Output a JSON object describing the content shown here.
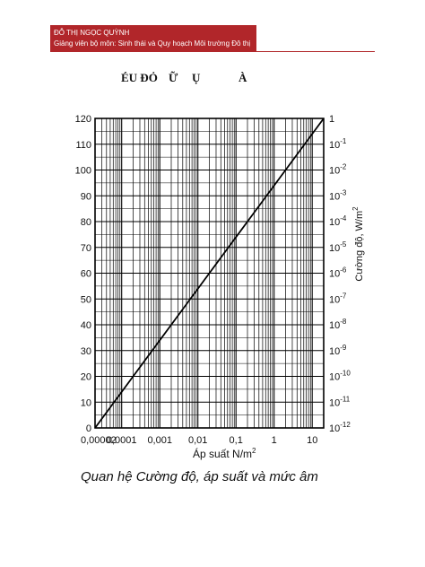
{
  "header": {
    "author": "ĐỖ THỊ NGỌC QUỲNH",
    "role": "Giảng viên bộ môn: Sinh thái và Quy hoạch Môi trường Đô thị",
    "band_color": "#b1262a"
  },
  "title": {
    "parts": [
      "ÉU ĐỎ",
      "Ữ",
      "Ụ",
      "À"
    ]
  },
  "caption": "Quan hệ Cường độ, áp suất và mức âm",
  "chart_data": {
    "type": "line",
    "title": "",
    "xlabel": "Áp suất N/m²",
    "ylabel": "",
    "y2label": "Cường độ, W/m²",
    "x_scale": "log",
    "x_ticks": [
      "0,00002",
      "0,0001",
      "0,001",
      "0,01",
      "0,1",
      "1",
      "10"
    ],
    "x_tick_values": [
      2e-05,
      0.0001,
      0.001,
      0.01,
      0.1,
      1,
      10
    ],
    "y_ticks": [
      0,
      10,
      20,
      30,
      40,
      50,
      60,
      70,
      80,
      90,
      100,
      110,
      120
    ],
    "ylim": [
      0,
      120
    ],
    "y2_ticks": [
      {
        "base": "1",
        "exp": ""
      },
      {
        "base": "10",
        "exp": "-1"
      },
      {
        "base": "10",
        "exp": "-2"
      },
      {
        "base": "10",
        "exp": "-3"
      },
      {
        "base": "10",
        "exp": "-4"
      },
      {
        "base": "10",
        "exp": "-5"
      },
      {
        "base": "10",
        "exp": "-6"
      },
      {
        "base": "10",
        "exp": "-7"
      },
      {
        "base": "10",
        "exp": "-8"
      },
      {
        "base": "10",
        "exp": "-9"
      },
      {
        "base": "10",
        "exp": "-10"
      },
      {
        "base": "10",
        "exp": "-11"
      },
      {
        "base": "10",
        "exp": "-12"
      }
    ],
    "grid": true,
    "series": [
      {
        "color": "#000000",
        "x": [
          2e-05,
          0.0002,
          0.002,
          0.02,
          0.2,
          2,
          20
        ],
        "y": [
          0,
          20,
          40,
          60,
          80,
          100,
          120
        ]
      }
    ]
  }
}
